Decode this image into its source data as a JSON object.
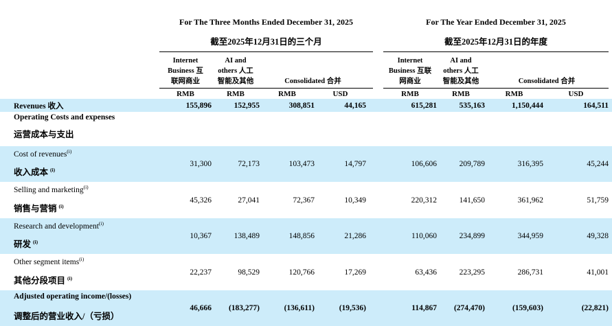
{
  "page": {
    "highlight_color": "#cdecfa",
    "text_color": "#000000",
    "rule_color": "#000000"
  },
  "header": {
    "left": {
      "title": "For The Three Months Ended December 31, 2025",
      "subtitle": "截至2025年12月31日的三个月",
      "col1": [
        "Internet",
        "Business 互",
        "联网商业"
      ],
      "col2": [
        "AI and",
        "others 人工",
        "智能及其他"
      ],
      "consolidated": "Consolidated 合并",
      "units": [
        "RMB",
        "RMB",
        "RMB",
        "USD"
      ]
    },
    "right": {
      "title": "For The Year Ended December 31, 2025",
      "subtitle": "截至2025年12月31日的年度",
      "col1": [
        "Internet",
        "Business 互联",
        "网商业"
      ],
      "col2": [
        "AI and",
        "others 人工",
        "智能及其他"
      ],
      "consolidated": "Consolidated 合并",
      "units": [
        "RMB",
        "RMB",
        "RMB",
        "USD"
      ]
    }
  },
  "rows": [
    {
      "label": "Revenues 收入",
      "q": [
        "155,896",
        "152,955",
        "308,851",
        "44,165"
      ],
      "y": [
        "615,281",
        "535,163",
        "1,150,444",
        "164,511"
      ]
    },
    {
      "type": "section",
      "en": "Operating Costs and expenses",
      "zh": "运营成本与支出"
    },
    {
      "en": "Cost of revenues",
      "sup": "(i)",
      "zh": "收入成本",
      "q": [
        "31,300",
        "72,173",
        "103,473",
        "14,797"
      ],
      "y": [
        "106,606",
        "209,789",
        "316,395",
        "45,244"
      ]
    },
    {
      "en": "Selling and marketing",
      "sup": "(i)",
      "zh": "销售与营销",
      "q": [
        "45,326",
        "27,041",
        "72,367",
        "10,349"
      ],
      "y": [
        "220,312",
        "141,650",
        "361,962",
        "51,759"
      ]
    },
    {
      "en": "Research and development",
      "sup": "(i)",
      "zh": "研发",
      "q": [
        "10,367",
        "138,489",
        "148,856",
        "21,286"
      ],
      "y": [
        "110,060",
        "234,899",
        "344,959",
        "49,328"
      ]
    },
    {
      "en": "Other segment items",
      "sup": "(i)",
      "zh": "其他分段项目",
      "q": [
        "22,237",
        "98,529",
        "120,766",
        "17,269"
      ],
      "y": [
        "63,436",
        "223,295",
        "286,731",
        "41,001"
      ]
    },
    {
      "en": "Adjusted operating income/(losses)",
      "zh": "调整后的营业收入/（亏损）",
      "q": [
        "46,666",
        "(183,277)",
        "(136,611)",
        "(19,536)"
      ],
      "y": [
        "114,867",
        "(274,470)",
        "(159,603)",
        "(22,821)"
      ]
    }
  ]
}
